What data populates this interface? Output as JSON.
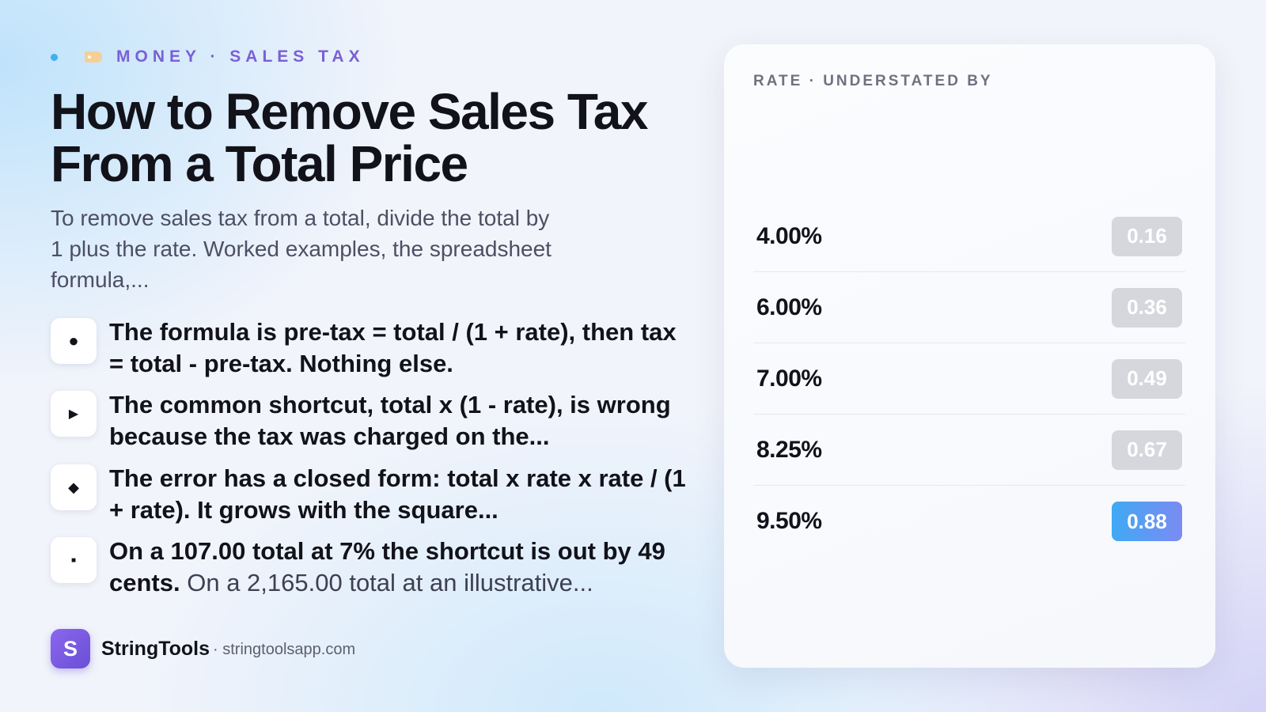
{
  "eyebrow": {
    "text": "MONEY · SALES TAX",
    "icon": "tag-icon"
  },
  "title": "How to Remove Sales Tax From a Total Price",
  "subtitle": "To remove sales tax from a total, divide the total by 1 plus the rate. Worked examples, the spreadsheet formula,...",
  "bullets": [
    {
      "marker": "●",
      "text": "The formula is pre-tax = total / (1 + rate), then tax = total - pre-tax. Nothing else.",
      "rest": ""
    },
    {
      "marker": "▶",
      "text": "The common shortcut, total x (1 - rate), is wrong because the tax was charged on the...",
      "rest": ""
    },
    {
      "marker": "◆",
      "text": "The error has a closed form: total x rate x rate / (1 + rate). It grows with the square...",
      "rest": ""
    },
    {
      "marker": "■",
      "text": "On a 107.00 total at 7% the shortcut is out by 49 cents.",
      "rest": " On a 2,165.00 total at an illustrative..."
    }
  ],
  "brand": {
    "logo_letter": "S",
    "name": "StringTools",
    "url": "· stringtoolsapp.com"
  },
  "card": {
    "title": "RATE · UNDERSTATED BY",
    "rows": [
      {
        "rate": "4.00%",
        "value": "0.16",
        "highlight": false
      },
      {
        "rate": "6.00%",
        "value": "0.36",
        "highlight": false
      },
      {
        "rate": "7.00%",
        "value": "0.49",
        "highlight": false
      },
      {
        "rate": "8.25%",
        "value": "0.67",
        "highlight": false
      },
      {
        "rate": "9.50%",
        "value": "0.88",
        "highlight": true
      }
    ]
  },
  "colors": {
    "accent": "#7a5fd6",
    "highlight_start": "#3fa9f5",
    "highlight_end": "#7b8bf2",
    "pill_default": "#d5d7dd"
  }
}
